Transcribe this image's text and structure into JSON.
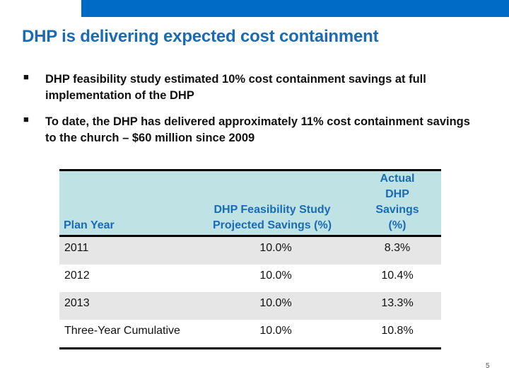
{
  "colors": {
    "brand_bar": "#006bc6",
    "title": "#1a6bb5",
    "header_bg": "#bfe2e5",
    "row_shade": "#e6e6e6"
  },
  "title": "DHP is delivering expected cost containment",
  "bullets": [
    {
      "icon": "square-bullet",
      "text": "DHP feasibility study estimated 10% cost containment savings at full implementation of the DHP"
    },
    {
      "icon": "square-bullet",
      "text": "To date, the DHP has delivered approximately 11% cost containment savings to the church – $60 million since 2009"
    }
  ],
  "table": {
    "headers": [
      "Plan Year",
      "DHP Feasibility Study Projected Savings (%)",
      "Actual DHP Savings (%)"
    ],
    "rows": [
      [
        "2011",
        "10.0%",
        "8.3%"
      ],
      [
        "2012",
        "10.0%",
        "10.4%"
      ],
      [
        "2013",
        "10.0%",
        "13.3%"
      ],
      [
        "Three-Year Cumulative",
        "10.0%",
        "10.8%"
      ]
    ]
  },
  "page_number": "5"
}
